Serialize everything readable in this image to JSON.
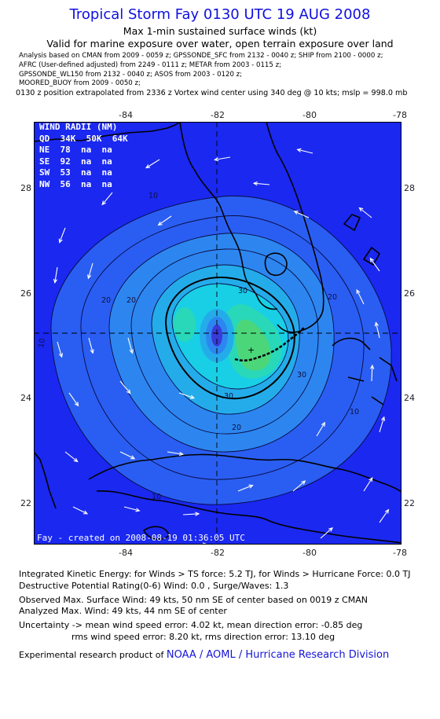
{
  "header": {
    "title": "Tropical Storm Fay 0130 UTC 19 AUG 2008",
    "subtitle1": "Max 1-min sustained surface winds (kt)",
    "subtitle2": "Valid for marine exposure over water, open terrain exposure over land"
  },
  "analysis_sources": [
    "Analysis based on  CMAN from 2009 - 0059 z;  GPSSONDE_SFC from 2132 - 0040 z;  SHIP from 2100 - 0000 z;",
    "AFRC  (User-defined adjusted)  from  2249 - 0111 z;  METAR from 2003 - 0115 z;",
    "GPSSONDE_WL150 from 2132 - 0040 z;  ASOS from 2003 - 0120 z;",
    "MOORED_BUOY from 2009 - 0050 z;"
  ],
  "extrapolation_note": "0130 z position extrapolated from 2336 z Vortex wind center using 340 deg @ 10 kts; mslp = 998.0 mb",
  "map": {
    "lon_ticks": [
      "-84",
      "-82",
      "-80",
      "-78"
    ],
    "lat_ticks": [
      "28",
      "26",
      "24",
      "22"
    ],
    "colors": {
      "ocean": "#1a28f0",
      "level_10": "#2a5ef2",
      "level_20": "#2d86f0",
      "level_30": "#24acea",
      "level_40": "#18cfe6",
      "level_45": "#28d8b8",
      "level_48": "#4cd67a",
      "vortex": "#3a3ad8",
      "coast": "#000000",
      "arrow": "#ffffff"
    },
    "contour_labels": [
      "10",
      "10",
      "10",
      "10",
      "20",
      "20",
      "20",
      "20",
      "30",
      "30",
      "30"
    ],
    "wind_radii": {
      "title": "WIND RADII (NM)",
      "header": "QD  34K  50K  64K",
      "rows": [
        {
          "quadrant": "NE",
          "r34": "78",
          "r50": "na",
          "r64": "na"
        },
        {
          "quadrant": "SE",
          "r34": "92",
          "r50": "na",
          "r64": "na"
        },
        {
          "quadrant": "SW",
          "r34": "53",
          "r50": "na",
          "r64": "na"
        },
        {
          "quadrant": "NW",
          "r34": "56",
          "r50": "na",
          "r64": "na"
        }
      ]
    },
    "created_stamp": "Fay - created on 2008-08-19 01:36:05 UTC"
  },
  "footer": {
    "ike": "Integrated Kinetic Energy:  for Winds > TS force: 5.2 TJ,  for Winds > Hurricane Force: 0.0 TJ",
    "dpr": "Destructive Potential Rating(0-6)   Wind: 0.0 , Surge/Waves: 1.3",
    "obs_max": "Observed Max. Surface Wind: 49 kts, 50 nm SE of center based on 0019 z CMAN",
    "ana_max": "Analyzed Max. Wind: 49 kts, 44 nm SE of center",
    "uncert1": "Uncertainty -> mean wind speed error: 4.02 kt,   mean direction error:  -0.85 deg",
    "uncert2": "rms wind speed error: 8.20 kt,   rms direction error: 13.10 deg",
    "credit_prefix": "Experimental research product of",
    "credit_link": "NOAA / AOML / Hurricane Research Division"
  }
}
